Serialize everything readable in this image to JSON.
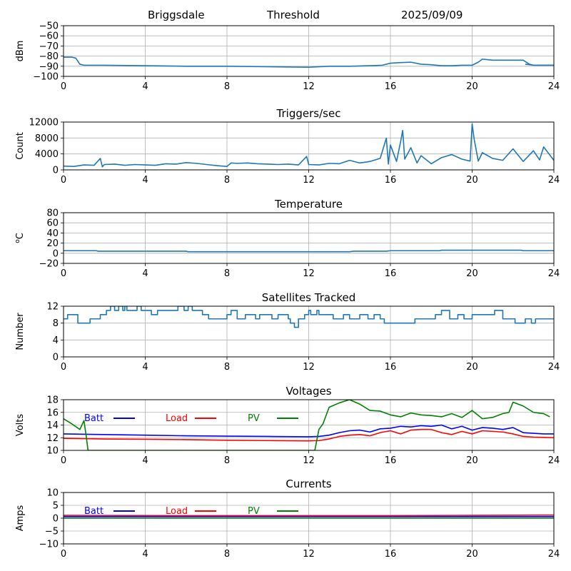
{
  "header": {
    "station": "Briggsdale",
    "mode": "Threshold",
    "date": "2025/09/09"
  },
  "chart_data": [
    {
      "id": "threshold",
      "type": "line",
      "title": "",
      "xlabel": "",
      "ylabel": "dBm",
      "xlim": [
        0,
        24
      ],
      "ylim": [
        -100,
        -50
      ],
      "xticks": [
        "0",
        "4",
        "8",
        "12",
        "16",
        "20",
        "24"
      ],
      "yticks": [
        "−100",
        "−90",
        "−80",
        "−70",
        "−60",
        "−50"
      ],
      "grid": true,
      "series": [
        {
          "color": "#1f77b4",
          "x": [
            0,
            0.4,
            0.6,
            0.8,
            1.0,
            1.5,
            2.0,
            4,
            6,
            8,
            10,
            12,
            13,
            14,
            15,
            15.6,
            16,
            16.4,
            17,
            17.5,
            18,
            18.5,
            19,
            19.5,
            20,
            20.3,
            20.5,
            21,
            22,
            22.5,
            22.8,
            23,
            23.5,
            24
          ],
          "y": [
            -81,
            -81,
            -82,
            -88,
            -89,
            -89,
            -89,
            -89.5,
            -90,
            -90,
            -90.5,
            -91,
            -90,
            -90,
            -89.5,
            -89,
            -87,
            -86.5,
            -86,
            -88,
            -88.5,
            -89.5,
            -89.5,
            -89,
            -89,
            -86,
            -83,
            -84,
            -84,
            -84,
            -88,
            -89,
            -89,
            -89
          ]
        },
        {
          "color": "#1f77b4",
          "x": [
            22.6,
            23,
            23.5,
            24
          ],
          "y": [
            -88,
            -89,
            -89,
            -89
          ]
        }
      ]
    },
    {
      "id": "triggers",
      "type": "line",
      "title": "Triggers/sec",
      "xlabel": "",
      "ylabel": "Count",
      "xlim": [
        0,
        24
      ],
      "ylim": [
        0,
        12500
      ],
      "xticks": [
        "0",
        "4",
        "8",
        "12",
        "16",
        "20",
        "24"
      ],
      "yticks": [
        "0",
        "4000",
        "8000",
        "12000"
      ],
      "grid": true,
      "series": [
        {
          "color": "#1f77b4",
          "x": [
            0,
            0.5,
            1.0,
            1.5,
            1.8,
            1.9,
            2.0,
            2.5,
            3,
            3.5,
            4,
            4.5,
            5,
            5.5,
            6,
            6.5,
            7,
            7.5,
            8,
            8.2,
            8.5,
            9,
            9.5,
            10,
            10.5,
            11,
            11.5,
            11.9,
            12,
            12.5,
            13,
            13.5,
            14,
            14.5,
            15,
            15.5,
            15.8,
            15.9,
            16,
            16.3,
            16.5,
            16.6,
            16.7,
            17,
            17.3,
            17.5,
            18,
            18.5,
            19,
            19.5,
            19.9,
            20,
            20.1,
            20.3,
            20.5,
            21,
            21.5,
            22,
            22.5,
            23,
            23.3,
            23.5,
            24
          ],
          "y": [
            1000,
            900,
            1300,
            1200,
            3000,
            800,
            1400,
            1500,
            1200,
            1400,
            1300,
            1200,
            1600,
            1500,
            1900,
            1700,
            1400,
            1100,
            900,
            1800,
            1700,
            1800,
            1600,
            1500,
            1400,
            1500,
            1300,
            3500,
            1400,
            1300,
            1700,
            1600,
            2500,
            1800,
            2200,
            3000,
            8300,
            1500,
            6500,
            2200,
            7400,
            10300,
            2800,
            5800,
            1800,
            3700,
            1600,
            3200,
            4000,
            2800,
            2300,
            12000,
            8000,
            2300,
            4500,
            3000,
            2500,
            5500,
            2200,
            5000,
            2600,
            6000,
            2500
          ]
        }
      ]
    },
    {
      "id": "temperature",
      "type": "line",
      "title": "Temperature",
      "xlabel": "",
      "ylabel": "°C",
      "ylabel_display": {
        "sup": "o",
        "unit": "C"
      },
      "xlim": [
        0,
        24
      ],
      "ylim": [
        -20,
        80
      ],
      "xticks": [
        "0",
        "4",
        "8",
        "12",
        "16",
        "20",
        "24"
      ],
      "yticks": [
        "−20",
        "0",
        "20",
        "40",
        "60",
        "80"
      ],
      "grid": true,
      "series": [
        {
          "color": "#1f77b4",
          "x": [
            0,
            1.6,
            1.7,
            6,
            6.1,
            10,
            14,
            14.2,
            15.8,
            16,
            18.4,
            18.5,
            22.4,
            22.5,
            24
          ],
          "y": [
            5,
            5,
            4,
            4,
            3,
            3,
            3,
            4,
            4,
            5,
            5,
            6,
            6,
            5,
            5
          ]
        }
      ]
    },
    {
      "id": "satellites",
      "type": "line",
      "title": "Satellites Tracked",
      "xlabel": "",
      "ylabel": "Number",
      "xlim": [
        0,
        24
      ],
      "ylim": [
        0,
        12
      ],
      "xticks": [
        "0",
        "4",
        "8",
        "12",
        "16",
        "20",
        "24"
      ],
      "yticks": [
        "0",
        "4",
        "8",
        "12"
      ],
      "grid": true,
      "series": [
        {
          "color": "#1f77b4",
          "step": true,
          "x": [
            0,
            0.2,
            0.3,
            0.7,
            1.2,
            1.3,
            1.8,
            2.1,
            2.3,
            2.5,
            2.7,
            2.9,
            3.0,
            3.1,
            3.3,
            3.5,
            3.6,
            3.8,
            4.0,
            4.1,
            4.3,
            4.6,
            5.0,
            5.6,
            5.9,
            6.1,
            6.3,
            6.5,
            6.8,
            7.1,
            7.2,
            7.5,
            8.0,
            8.2,
            8.5,
            8.9,
            9.4,
            9.6,
            10.0,
            10.2,
            10.5,
            11.0,
            11.1,
            11.3,
            11.5,
            11.8,
            12.0,
            12.1,
            12.4,
            12.5,
            12.7,
            13.2,
            13.7,
            14.0,
            14.5,
            14.9,
            15.2,
            15.5,
            15.7,
            16.0,
            16.3,
            16.5,
            17.2,
            18.0,
            18.2,
            18.5,
            18.9,
            19.3,
            19.6,
            20.0,
            20.4,
            21.0,
            21.1,
            21.5,
            22.0,
            22.1,
            22.6,
            22.9,
            23.1,
            23.4,
            23.6,
            24
          ],
          "y": [
            9,
            10,
            10,
            8,
            8,
            9,
            10,
            11,
            12,
            11,
            12,
            11,
            12,
            11,
            11,
            11,
            12,
            11,
            11,
            11,
            10,
            11,
            11,
            12,
            11,
            12,
            11,
            11,
            10,
            9,
            9,
            9,
            10,
            11,
            9,
            10,
            9,
            10,
            10,
            9,
            10,
            9,
            8,
            7,
            9,
            10,
            11,
            10,
            11,
            10,
            10,
            9,
            10,
            9,
            10,
            9,
            10,
            9,
            8,
            8,
            8,
            8,
            9,
            9,
            10,
            11,
            9,
            10,
            9,
            10,
            10,
            10,
            11,
            9,
            9,
            8,
            9,
            8,
            9,
            9,
            9,
            9
          ]
        }
      ]
    },
    {
      "id": "voltages",
      "type": "line",
      "title": "Voltages",
      "xlabel": "",
      "ylabel": "Volts",
      "xlim": [
        0,
        24
      ],
      "ylim": [
        10,
        18
      ],
      "xticks": [
        "0",
        "4",
        "8",
        "12",
        "16",
        "20",
        "24"
      ],
      "yticks": [
        "10",
        "12",
        "14",
        "16",
        "18"
      ],
      "grid": true,
      "legend": "top-left (horizontal)",
      "series": [
        {
          "name": "Batt",
          "color": "#0000ff",
          "x": [
            0,
            2,
            4,
            6,
            8,
            10,
            12,
            12.5,
            13,
            13.5,
            14,
            14.5,
            15,
            15.5,
            16,
            16.5,
            17,
            17.5,
            18,
            18.5,
            19,
            19.5,
            20,
            20.5,
            21,
            21.5,
            22,
            22.5,
            23,
            23.5,
            24
          ],
          "y": [
            12.6,
            12.5,
            12.4,
            12.3,
            12.25,
            12.2,
            12.15,
            12.2,
            12.4,
            12.8,
            13.1,
            13.2,
            12.9,
            13.4,
            13.5,
            13.8,
            13.7,
            13.9,
            13.8,
            14.0,
            13.4,
            13.8,
            13.2,
            13.6,
            13.5,
            13.3,
            13.6,
            12.8,
            12.7,
            12.6,
            12.6
          ]
        },
        {
          "name": "Load",
          "color": "#ff0000",
          "x": [
            0,
            2,
            4,
            6,
            8,
            10,
            12,
            12.5,
            13,
            13.5,
            14,
            14.5,
            15,
            15.5,
            16,
            16.5,
            17,
            17.5,
            18,
            18.5,
            19,
            19.5,
            20,
            20.5,
            21,
            21.5,
            22,
            22.5,
            23,
            23.5,
            24
          ],
          "y": [
            11.9,
            11.8,
            11.75,
            11.7,
            11.6,
            11.55,
            11.5,
            11.55,
            11.8,
            12.2,
            12.4,
            12.5,
            12.3,
            12.8,
            13.1,
            12.6,
            13.2,
            13.3,
            13.3,
            12.8,
            12.5,
            13.0,
            12.6,
            13.1,
            13.0,
            12.9,
            12.6,
            12.2,
            12.1,
            12.05,
            12.0
          ]
        },
        {
          "name": "PV",
          "color": "#008000",
          "x": [
            0,
            0.4,
            0.8,
            1.0,
            1.1,
            1.2,
            12.3,
            12.5,
            12.7,
            13.0,
            13.5,
            14.0,
            14.5,
            15.0,
            15.5,
            16.0,
            16.5,
            17.0,
            17.5,
            18.0,
            18.5,
            19.0,
            19.5,
            20.0,
            20.5,
            21.0,
            21.5,
            21.8,
            22.0,
            22.5,
            23.0,
            23.5,
            23.8
          ],
          "y": [
            15.0,
            14.2,
            13.3,
            14.7,
            12.5,
            10.0,
            10.0,
            13.3,
            14.2,
            16.8,
            17.5,
            18.0,
            17.3,
            16.3,
            16.2,
            15.6,
            15.3,
            15.9,
            15.6,
            15.5,
            15.3,
            15.8,
            15.2,
            16.3,
            15.0,
            15.2,
            15.8,
            16.0,
            17.6,
            17.0,
            16.0,
            15.8,
            15.3
          ]
        }
      ]
    },
    {
      "id": "currents",
      "type": "line",
      "title": "Currents",
      "xlabel": "",
      "ylabel": "Amps",
      "xlim": [
        0,
        24
      ],
      "ylim": [
        -10,
        10
      ],
      "xticks": [
        "0",
        "4",
        "8",
        "12",
        "16",
        "20",
        "24"
      ],
      "yticks": [
        "−10",
        "−5",
        "0",
        "5",
        "10"
      ],
      "grid": true,
      "legend": "top-left (horizontal)",
      "series": [
        {
          "name": "Batt",
          "color": "#0000ff",
          "x": [
            0,
            24
          ],
          "y": [
            0.6,
            0.6
          ]
        },
        {
          "name": "Load",
          "color": "#ff0000",
          "x": [
            0,
            6,
            12,
            16,
            20,
            24
          ],
          "y": [
            1.1,
            1.0,
            1.0,
            1.0,
            1.1,
            1.2
          ]
        },
        {
          "name": "PV",
          "color": "#008000",
          "x": [
            0,
            24
          ],
          "y": [
            0.0,
            0.0
          ]
        }
      ]
    }
  ]
}
